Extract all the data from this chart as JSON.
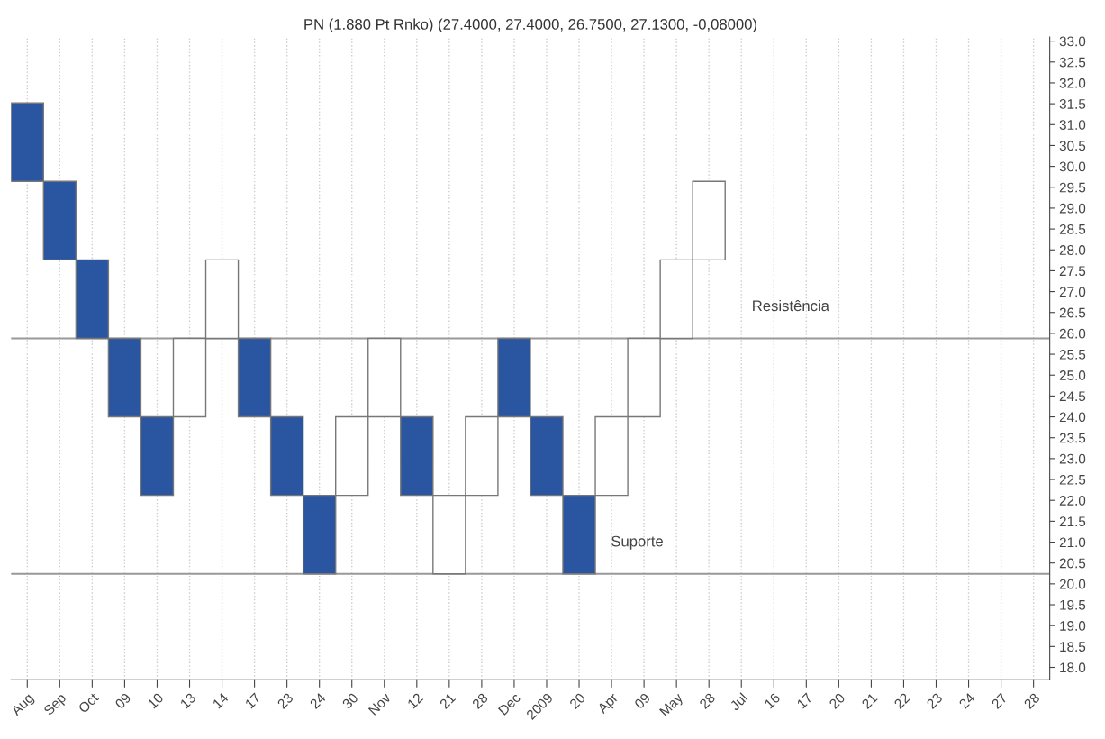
{
  "chart_data": {
    "type": "bar",
    "title": "PN (1.880 Pt Rnko) (27.4000, 27.4000, 26.7500, 27.1300, -0,08000)",
    "categories": [
      "Aug",
      "Sep",
      "Oct",
      "09",
      "10",
      "13",
      "14",
      "17",
      "23",
      "24",
      "30",
      "Nov",
      "12",
      "21",
      "28",
      "Dec",
      "2009",
      "20",
      "Apr",
      "09",
      "May",
      "28",
      "Jul",
      "16",
      "17",
      "20",
      "21",
      "22",
      "23",
      "24",
      "27",
      "28"
    ],
    "base": [
      29.64,
      27.76,
      25.88,
      24.0,
      22.12,
      24.0,
      25.88,
      24.0,
      22.12,
      20.24,
      22.12,
      24.0,
      22.12,
      20.24,
      22.12,
      24.0,
      22.12,
      20.24,
      22.12,
      24.0,
      25.88,
      27.76,
      null,
      null,
      null,
      null,
      null,
      null,
      null,
      null,
      null,
      null
    ],
    "values": [
      1.88,
      1.88,
      1.88,
      1.88,
      1.88,
      1.88,
      1.88,
      1.88,
      1.88,
      1.88,
      1.88,
      1.88,
      1.88,
      1.88,
      1.88,
      1.88,
      1.88,
      1.88,
      1.88,
      1.88,
      1.88,
      1.88,
      null,
      null,
      null,
      null,
      null,
      null,
      null,
      null,
      null,
      null
    ],
    "colors": [
      "#2a55a0",
      "#2a55a0",
      "#2a55a0",
      "#2a55a0",
      "#2a55a0",
      "#ffffff",
      "#ffffff",
      "#2a55a0",
      "#2a55a0",
      "#2a55a0",
      "#ffffff",
      "#ffffff",
      "#2a55a0",
      "#ffffff",
      "#ffffff",
      "#2a55a0",
      "#2a55a0",
      "#2a55a0",
      "#ffffff",
      "#ffffff",
      "#ffffff",
      "#ffffff",
      null,
      null,
      null,
      null,
      null,
      null,
      null,
      null,
      null,
      null
    ],
    "ylim": [
      17.7,
      33.1
    ],
    "yticks": [
      {
        "value": 18,
        "label": "18.0"
      },
      {
        "value": 18.5,
        "label": "18.5"
      },
      {
        "value": 19,
        "label": "19.0"
      },
      {
        "value": 19.5,
        "label": "19.5"
      },
      {
        "value": 20,
        "label": "20.0"
      },
      {
        "value": 20.5,
        "label": "20.5"
      },
      {
        "value": 21,
        "label": "21.0"
      },
      {
        "value": 21.5,
        "label": "21.5"
      },
      {
        "value": 22,
        "label": "22.0"
      },
      {
        "value": 22.5,
        "label": "22.5"
      },
      {
        "value": 23,
        "label": "23.0"
      },
      {
        "value": 23.5,
        "label": "23.5"
      },
      {
        "value": 24,
        "label": "24.0"
      },
      {
        "value": 24.5,
        "label": "24.5"
      },
      {
        "value": 25,
        "label": "25.0"
      },
      {
        "value": 25.5,
        "label": "25.5"
      },
      {
        "value": 26,
        "label": "26.0"
      },
      {
        "value": 26.5,
        "label": "26.5"
      },
      {
        "value": 27,
        "label": "27.0"
      },
      {
        "value": 27.5,
        "label": "27.5"
      },
      {
        "value": 28,
        "label": "28.0"
      },
      {
        "value": 28.5,
        "label": "28.5"
      },
      {
        "value": 29,
        "label": "29.0"
      },
      {
        "value": 29.5,
        "label": "29.5"
      },
      {
        "value": 30,
        "label": "30.0"
      },
      {
        "value": 30.5,
        "label": "30.5"
      },
      {
        "value": 31,
        "label": "31.0"
      },
      {
        "value": 31.5,
        "label": "31.5"
      },
      {
        "value": 32,
        "label": "32.0"
      },
      {
        "value": 32.5,
        "label": "32.5"
      },
      {
        "value": 33,
        "label": "33.0"
      }
    ],
    "ref_lines": [
      {
        "axis": "y",
        "value": 25.88,
        "label": "Resistência",
        "color": "#999999"
      },
      {
        "axis": "y",
        "value": 20.24,
        "label": "Suporte",
        "color": "#999999"
      }
    ],
    "grid": "x",
    "legend": false
  }
}
